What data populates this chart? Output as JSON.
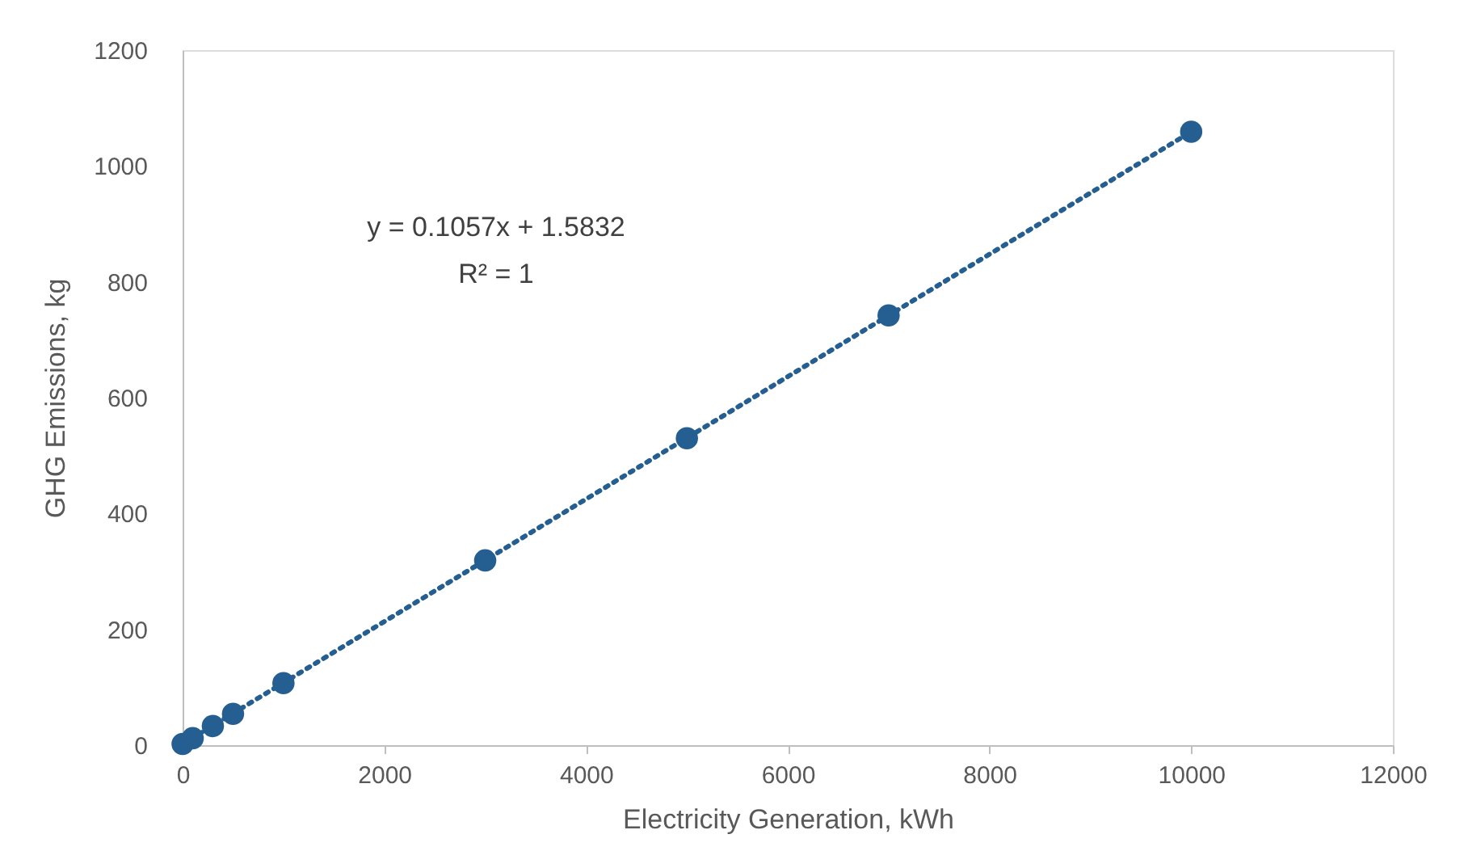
{
  "chart_data": {
    "type": "scatter",
    "xlabel": "Electricity Generation, kWh",
    "ylabel": "GHG Emissions, kg",
    "xlim": [
      0,
      12000
    ],
    "xticks": [
      0,
      2000,
      4000,
      6000,
      8000,
      10000,
      12000
    ],
    "ylim": [
      0,
      1200
    ],
    "yticks": [
      0,
      200,
      400,
      600,
      800,
      1000,
      1200
    ],
    "grid": false,
    "marker": "circle",
    "series": [
      {
        "color": "#255e91",
        "x": [
          0,
          100,
          300,
          500,
          1000,
          3000,
          5000,
          7000,
          10000
        ],
        "values": [
          2,
          12,
          33,
          54,
          107,
          319,
          530,
          742,
          1059
        ]
      },
      {
        "type": "line",
        "color": "#255e91",
        "line_style": "dotted",
        "marker": "none",
        "x": [
          0,
          10000
        ],
        "values": [
          2,
          1059
        ]
      }
    ],
    "annotations": [
      {
        "text": "y = 0.1057x + 1.5832"
      },
      {
        "text": "R² = 1"
      }
    ]
  }
}
